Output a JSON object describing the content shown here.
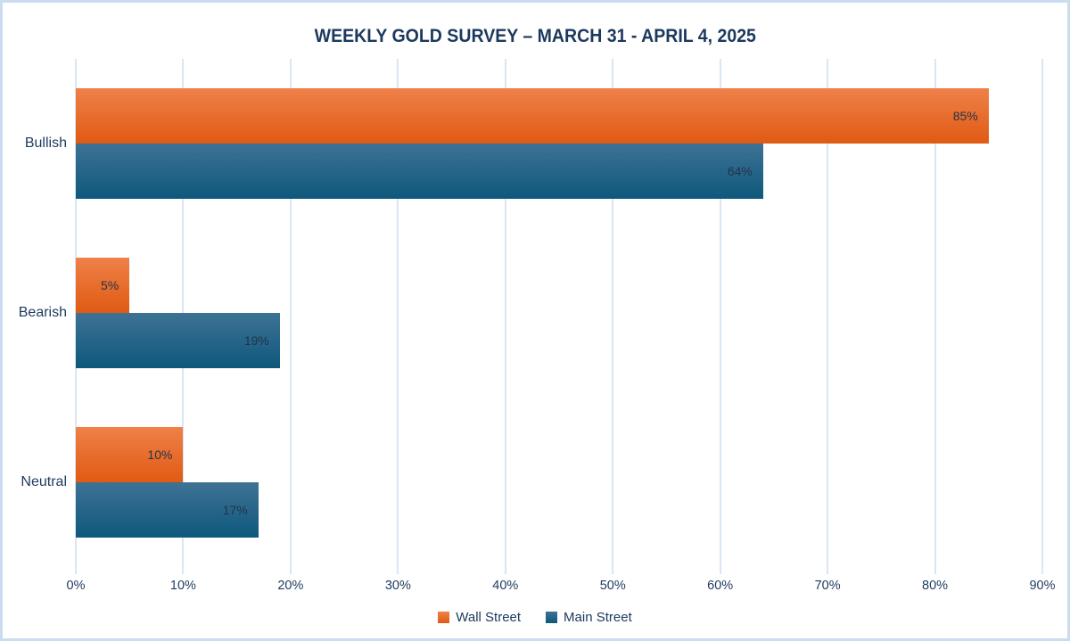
{
  "chart_data": {
    "type": "bar",
    "orientation": "horizontal",
    "title": "WEEKLY GOLD SURVEY – MARCH 31 - APRIL 4, 2025",
    "categories": [
      "Bullish",
      "Bearish",
      "Neutral"
    ],
    "series": [
      {
        "name": "Wall Street",
        "values": [
          85,
          5,
          10
        ],
        "value_labels": [
          "85%",
          "5%",
          "10%"
        ],
        "color_top": "#ef8149",
        "color_bottom": "#e05a13",
        "legend_color": "#ea7434"
      },
      {
        "name": "Main Street",
        "values": [
          64,
          19,
          17
        ],
        "value_labels": [
          "64%",
          "19%",
          "17%"
        ],
        "color_top": "#3e7294",
        "color_bottom": "#0e587d",
        "legend_color": "#25617f"
      }
    ],
    "xlim": [
      0,
      90
    ],
    "x_tick_labels": [
      "0%",
      "10%",
      "20%",
      "30%",
      "40%",
      "50%",
      "60%",
      "70%",
      "80%",
      "90%"
    ],
    "grid": true,
    "gridline_color": "#d9e6f5",
    "title_color": "#1b395e",
    "axis_text_color": "#1d3a5e",
    "value_label_color": "#233349",
    "legend_position": "bottom",
    "legend_labels": [
      "Wall Street",
      "Main Street"
    ]
  }
}
